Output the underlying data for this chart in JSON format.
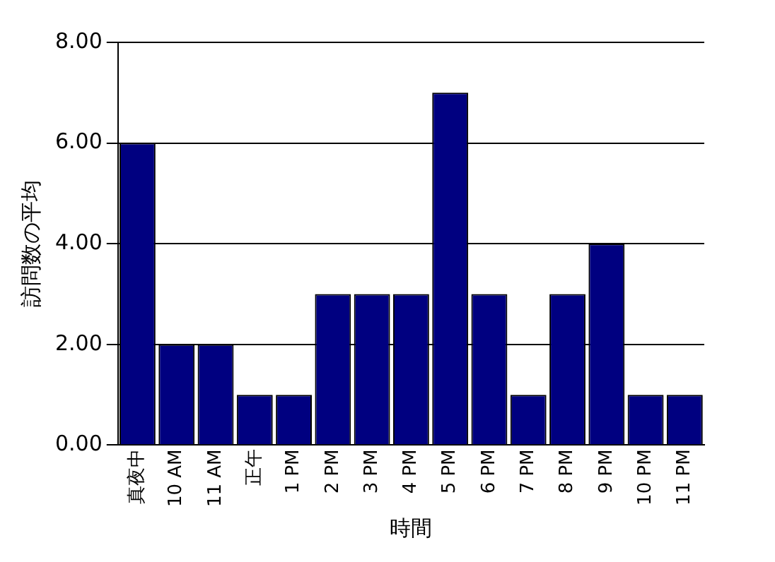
{
  "chart_data": {
    "type": "bar",
    "xlabel": "時間",
    "ylabel": "訪問数の平均",
    "categories": [
      "真夜中",
      "10 AM",
      "11 AM",
      "正午",
      "1 PM",
      "2 PM",
      "3 PM",
      "4 PM",
      "5 PM",
      "6 PM",
      "7 PM",
      "8 PM",
      "9 PM",
      "10 PM",
      "11 PM"
    ],
    "values": [
      6,
      2,
      2,
      1,
      1,
      3,
      3,
      3,
      7,
      3,
      1,
      3,
      4,
      1,
      1
    ],
    "color": "#000080",
    "ylim": [
      0,
      8
    ],
    "yticks": [
      {
        "value": 0,
        "label": "0.00"
      },
      {
        "value": 2,
        "label": "2.00"
      },
      {
        "value": 4,
        "label": "4.00"
      },
      {
        "value": 6,
        "label": "6.00"
      },
      {
        "value": 8,
        "label": "8.00"
      }
    ],
    "grid": "y",
    "legend": false
  }
}
